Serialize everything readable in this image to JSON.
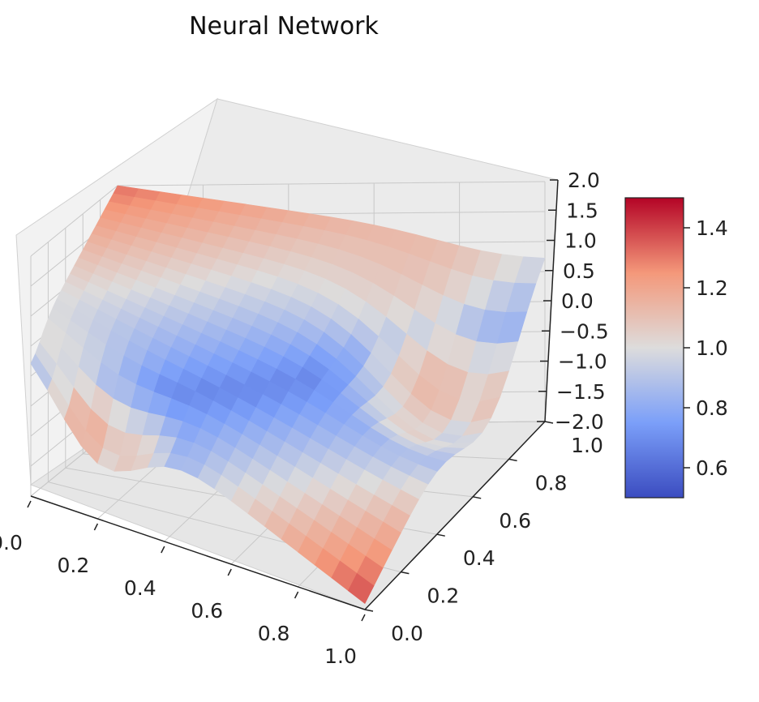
{
  "chart_data": {
    "type": "surface3d",
    "title": "Neural Network",
    "xlabel": "",
    "ylabel": "",
    "zlabel": "",
    "x": [
      0.0,
      0.05,
      0.1,
      0.15,
      0.2,
      0.25,
      0.3,
      0.35,
      0.4,
      0.45,
      0.5,
      0.55,
      0.6,
      0.65,
      0.7,
      0.75,
      0.8,
      0.85,
      0.9,
      0.95,
      1.0
    ],
    "y": [
      0.0,
      0.05,
      0.1,
      0.15,
      0.2,
      0.25,
      0.3,
      0.35,
      0.4,
      0.45,
      0.5,
      0.55,
      0.6,
      0.65,
      0.7,
      0.75,
      0.8,
      0.85,
      0.9,
      0.95,
      1.0
    ],
    "z_description_values": {
      "corner_x0_y0": 0.5,
      "corner_x1_y0": -1.9,
      "corner_x0_y1": 2.0,
      "corner_x1_y1": 0.9,
      "min_near": [
        0.2,
        0.0,
        -0.9
      ],
      "min_far": [
        0.9,
        0.7,
        -0.8
      ]
    },
    "xlim": [
      0.0,
      1.0
    ],
    "ylim": [
      0.0,
      1.0
    ],
    "zlim": [
      -2.0,
      2.0
    ],
    "x_ticks": [
      "0.0",
      "0.2",
      "0.4",
      "0.6",
      "0.8",
      "1.0"
    ],
    "y_ticks": [
      "0.0",
      "0.2",
      "0.4",
      "0.6",
      "0.8",
      "1.0"
    ],
    "z_ticks": [
      "−2.0",
      "−1.5",
      "−1.0",
      "−0.5",
      "0.0",
      "0.5",
      "1.0",
      "1.5",
      "2.0"
    ],
    "colorbar": {
      "ticks": [
        "0.6",
        "0.8",
        "1.0",
        "1.2",
        "1.4"
      ],
      "range": [
        0.5,
        1.5
      ],
      "colormap": "coolwarm"
    },
    "grid": true
  },
  "colors": {
    "pane": "#f2f2f2",
    "grid": "#c8c8c8",
    "low": "#3b4cc0",
    "mid": "#dddddd",
    "high": "#b40426"
  }
}
